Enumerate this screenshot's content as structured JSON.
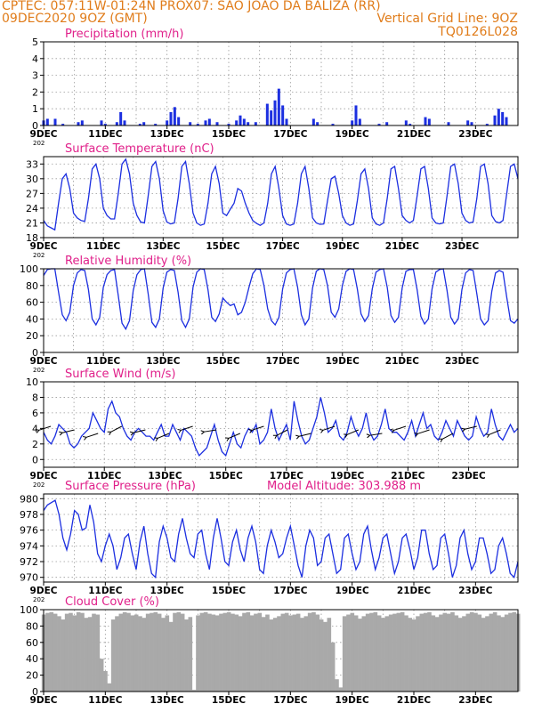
{
  "header": {
    "line1_left": "CPTEC:    057:11W-01:24N    PROX07: SAO JOAO DA BALIZA (RR)",
    "line2_left": "09DEC2020 9OZ (GMT)",
    "line2_right": "Vertical Grid Line: 9OZ",
    "line3_right": "TQ0126L028"
  },
  "colors": {
    "header": "#e07c1a",
    "title": "#e0208a",
    "series": "#1c2fe0",
    "cloud": "#a9a9a9",
    "grid": "#9a9a9a",
    "axis": "#000000"
  },
  "x_axis": {
    "ticks": [
      "9DEC",
      "11DEC",
      "13DEC",
      "15DEC",
      "17DEC",
      "19DEC",
      "21DEC",
      "23DEC"
    ],
    "year_stub": "202"
  },
  "chart_data": [
    {
      "type": "bar",
      "title": "Precipitation (mm/h)",
      "ylim": [
        0,
        5
      ],
      "yticks": [
        0,
        1,
        2,
        3,
        4,
        5
      ],
      "grid": true,
      "x_start": "2020-12-09 09Z",
      "x_step_hours": 3,
      "x_days": 15,
      "values": [
        0.3,
        0.4,
        0,
        0.4,
        0,
        0.1,
        0,
        0,
        0,
        0.2,
        0.3,
        0,
        0,
        0,
        0,
        0.3,
        0.1,
        0,
        0,
        0.2,
        0.8,
        0.3,
        0,
        0,
        0,
        0.1,
        0.2,
        0,
        0,
        0.1,
        0,
        0,
        0.3,
        0.8,
        1.1,
        0.5,
        0,
        0,
        0.2,
        0,
        0.1,
        0,
        0.3,
        0.4,
        0,
        0.2,
        0,
        0,
        0.1,
        0,
        0.3,
        0.6,
        0.4,
        0.2,
        0,
        0.2,
        0,
        0,
        1.3,
        0.9,
        1.5,
        2.2,
        1.2,
        0.4,
        0,
        0,
        0,
        0,
        0,
        0,
        0.4,
        0.2,
        0,
        0,
        0,
        0.1,
        0,
        0,
        0,
        0,
        0.3,
        1.2,
        0.4,
        0,
        0,
        0,
        0,
        0.1,
        0,
        0.2,
        0,
        0,
        0,
        0,
        0.3,
        0.1,
        0,
        0,
        0,
        0.5,
        0.4,
        0,
        0,
        0,
        0,
        0.2,
        0,
        0,
        0,
        0,
        0.3,
        0.2,
        0,
        0,
        0,
        0.1,
        0,
        0.6,
        1.0,
        0.8,
        0.5,
        0,
        0,
        0
      ]
    },
    {
      "type": "line",
      "title": "Surface Temperature (nC)",
      "ylim": [
        18,
        34.5
      ],
      "yticks": [
        18,
        21,
        24,
        27,
        30,
        33
      ],
      "grid": true,
      "x_start": "2020-12-09 09Z",
      "x_step_hours": 3,
      "x_days": 15,
      "values": [
        21.5,
        20.4,
        20.0,
        19.6,
        25.0,
        30.0,
        31.0,
        28.0,
        23.0,
        22.0,
        21.5,
        21.3,
        26.0,
        32.0,
        33.0,
        30.0,
        24.0,
        22.5,
        21.8,
        21.8,
        27.0,
        33.0,
        34.0,
        31.0,
        25.0,
        22.5,
        21.2,
        21.0,
        26.5,
        32.5,
        33.5,
        30.0,
        23.5,
        21.2,
        20.8,
        21.0,
        26.0,
        32.5,
        33.5,
        29.0,
        23.0,
        21.0,
        20.5,
        20.8,
        25.0,
        31.0,
        32.5,
        29.0,
        23.0,
        22.5,
        23.8,
        25.0,
        28.0,
        27.5,
        25.0,
        23.0,
        21.5,
        20.9,
        20.5,
        21.0,
        25.0,
        31.0,
        32.5,
        28.0,
        22.5,
        20.8,
        20.5,
        20.8,
        25.0,
        31.0,
        32.5,
        28.0,
        22.0,
        21.0,
        20.7,
        20.8,
        25.5,
        30.0,
        30.5,
        27.0,
        22.5,
        21.0,
        20.5,
        20.8,
        25.5,
        31.0,
        32.0,
        28.0,
        22.0,
        20.8,
        20.5,
        21.0,
        26.0,
        32.0,
        32.5,
        28.0,
        22.5,
        21.5,
        21.0,
        21.5,
        26.5,
        32.0,
        32.5,
        28.0,
        22.0,
        21.0,
        20.8,
        21.0,
        26.5,
        32.5,
        33.0,
        29.0,
        23.0,
        21.5,
        21.0,
        21.2,
        26.0,
        32.5,
        33.0,
        29.0,
        22.5,
        21.3,
        21.0,
        21.5,
        27.0,
        32.5,
        33.0,
        30.0
      ]
    },
    {
      "type": "line",
      "title": "Relative Humidity (%)",
      "ylim": [
        0,
        100
      ],
      "yticks": [
        0,
        20,
        40,
        60,
        80,
        100
      ],
      "grid": true,
      "x_start": "2020-12-09 09Z",
      "x_step_hours": 3,
      "x_days": 15,
      "values": [
        92,
        99,
        100,
        100,
        72,
        45,
        38,
        48,
        80,
        95,
        99,
        98,
        75,
        40,
        33,
        42,
        78,
        93,
        98,
        99,
        68,
        35,
        28,
        38,
        74,
        93,
        99,
        100,
        70,
        36,
        30,
        40,
        77,
        96,
        99,
        98,
        72,
        38,
        30,
        40,
        78,
        96,
        100,
        99,
        75,
        42,
        37,
        46,
        65,
        60,
        56,
        58,
        45,
        48,
        60,
        78,
        94,
        100,
        99,
        80,
        52,
        38,
        33,
        42,
        76,
        95,
        99,
        100,
        78,
        45,
        33,
        40,
        77,
        97,
        100,
        99,
        80,
        48,
        42,
        52,
        80,
        97,
        100,
        99,
        76,
        46,
        37,
        44,
        76,
        96,
        99,
        100,
        78,
        44,
        36,
        42,
        77,
        97,
        99,
        99,
        75,
        43,
        34,
        40,
        76,
        96,
        99,
        100,
        74,
        42,
        34,
        40,
        75,
        95,
        99,
        98,
        70,
        40,
        33,
        38,
        73,
        95,
        98,
        96,
        66,
        38,
        35,
        40
      ]
    },
    {
      "type": "line",
      "title": "Surface Wind (m/s)",
      "ylim": [
        -1,
        10
      ],
      "yticks": [
        0,
        2,
        4,
        6,
        8,
        10
      ],
      "grid": true,
      "x_start": "2020-12-09 09Z",
      "x_step_hours": 3,
      "x_days": 15,
      "values": [
        3.5,
        2.5,
        2.0,
        3.0,
        4.5,
        4.0,
        3.5,
        2.0,
        1.5,
        2.0,
        3.0,
        3.5,
        4.0,
        6.0,
        5.0,
        4.0,
        3.5,
        6.5,
        7.5,
        6.0,
        5.5,
        4.0,
        3.0,
        2.5,
        3.5,
        4.0,
        3.5,
        3.0,
        3.0,
        2.5,
        3.5,
        4.5,
        3.0,
        3.0,
        4.5,
        3.5,
        2.5,
        4.0,
        3.5,
        3.0,
        1.5,
        0.5,
        1.0,
        1.5,
        3.0,
        4.5,
        2.5,
        1.0,
        0.5,
        2.0,
        3.5,
        2.0,
        1.5,
        3.0,
        4.0,
        3.5,
        4.5,
        2.0,
        2.5,
        3.5,
        6.5,
        4.0,
        2.5,
        3.5,
        4.5,
        2.5,
        7.5,
        5.0,
        3.0,
        2.0,
        2.5,
        4.0,
        5.5,
        8.0,
        6.0,
        3.5,
        4.0,
        5.0,
        3.0,
        2.5,
        3.5,
        5.5,
        4.0,
        3.0,
        4.0,
        6.0,
        3.5,
        2.5,
        3.0,
        4.5,
        6.5,
        4.0,
        3.5,
        3.5,
        3.0,
        2.5,
        3.5,
        5.0,
        3.0,
        4.5,
        6.0,
        4.0,
        4.5,
        3.0,
        2.5,
        3.5,
        5.0,
        4.0,
        3.0,
        5.0,
        4.0,
        3.0,
        2.5,
        3.0,
        5.5,
        4.0,
        3.0,
        3.5,
        6.5,
        4.5,
        3.0,
        2.5,
        3.5,
        4.5,
        3.5,
        4.0
      ]
    },
    {
      "type": "line",
      "title": "Surface Pressure (hPa)",
      "annotation": "Model Altitude: 303.988  m",
      "ylim": [
        969.4,
        980.6
      ],
      "yticks": [
        970,
        972,
        974,
        976,
        978,
        980
      ],
      "grid": true,
      "x_start": "2020-12-09 09Z",
      "x_step_hours": 3,
      "x_days": 15,
      "values": [
        978.5,
        979.2,
        979.5,
        979.8,
        978.0,
        975.0,
        973.5,
        975.5,
        978.5,
        978.0,
        976.0,
        976.3,
        979.2,
        977.0,
        973.0,
        972.0,
        974.0,
        975.5,
        974.0,
        971.0,
        972.5,
        975.0,
        975.5,
        973.0,
        971.0,
        974.5,
        976.5,
        973.0,
        970.5,
        970.0,
        974.5,
        976.5,
        975.0,
        972.5,
        972.0,
        975.5,
        977.5,
        975.0,
        973.0,
        972.5,
        975.5,
        976.0,
        973.0,
        971.0,
        975.0,
        977.5,
        975.0,
        972.0,
        971.5,
        974.5,
        976.0,
        973.5,
        972.0,
        975.0,
        976.5,
        974.5,
        971.0,
        970.5,
        974.0,
        976.0,
        974.5,
        972.5,
        973.0,
        975.0,
        976.5,
        974.0,
        971.5,
        970.0,
        974.0,
        976.0,
        975.0,
        971.5,
        972.0,
        975.0,
        975.5,
        973.0,
        970.5,
        971.0,
        975.0,
        975.5,
        973.0,
        971.0,
        972.0,
        975.5,
        976.5,
        973.5,
        971.0,
        972.5,
        975.0,
        975.5,
        973.0,
        970.5,
        972.0,
        975.0,
        975.5,
        973.5,
        971.0,
        972.5,
        976.0,
        976.0,
        973.0,
        971.0,
        971.5,
        975.0,
        975.5,
        973.0,
        970.0,
        971.5,
        975.0,
        976.0,
        973.0,
        971.0,
        972.0,
        975.0,
        975.0,
        973.0,
        970.5,
        971.0,
        974.0,
        975.0,
        973.0,
        970.5,
        970.0,
        972.0
      ]
    },
    {
      "type": "area",
      "title": "Cloud Cover (%)",
      "ylim": [
        0,
        100
      ],
      "yticks": [
        0,
        20,
        40,
        60,
        80,
        100
      ],
      "grid": true,
      "x_start": "2020-12-09 09Z",
      "x_step_hours": 3,
      "x_days": 15,
      "values": [
        94,
        96,
        97,
        95,
        92,
        88,
        95,
        96,
        93,
        97,
        96,
        90,
        91,
        95,
        94,
        40,
        25,
        10,
        88,
        92,
        95,
        97,
        96,
        93,
        94,
        92,
        90,
        95,
        96,
        97,
        95,
        90,
        93,
        85,
        96,
        97,
        95,
        88,
        91,
        2,
        93,
        96,
        97,
        95,
        94,
        93,
        95,
        96,
        97,
        95,
        94,
        92,
        96,
        97,
        93,
        95,
        96,
        91,
        94,
        88,
        90,
        92,
        95,
        96,
        93,
        94,
        95,
        90,
        92,
        96,
        97,
        94,
        88,
        85,
        90,
        60,
        15,
        5,
        92,
        94,
        96,
        93,
        89,
        92,
        95,
        96,
        97,
        93,
        90,
        92,
        94,
        95,
        96,
        97,
        93,
        90,
        88,
        92,
        95,
        96,
        97,
        93,
        91,
        94,
        96,
        95,
        97,
        93,
        90,
        92,
        95,
        97,
        96,
        94,
        90,
        92,
        95,
        97,
        93,
        91,
        94,
        96,
        97,
        95
      ]
    }
  ]
}
